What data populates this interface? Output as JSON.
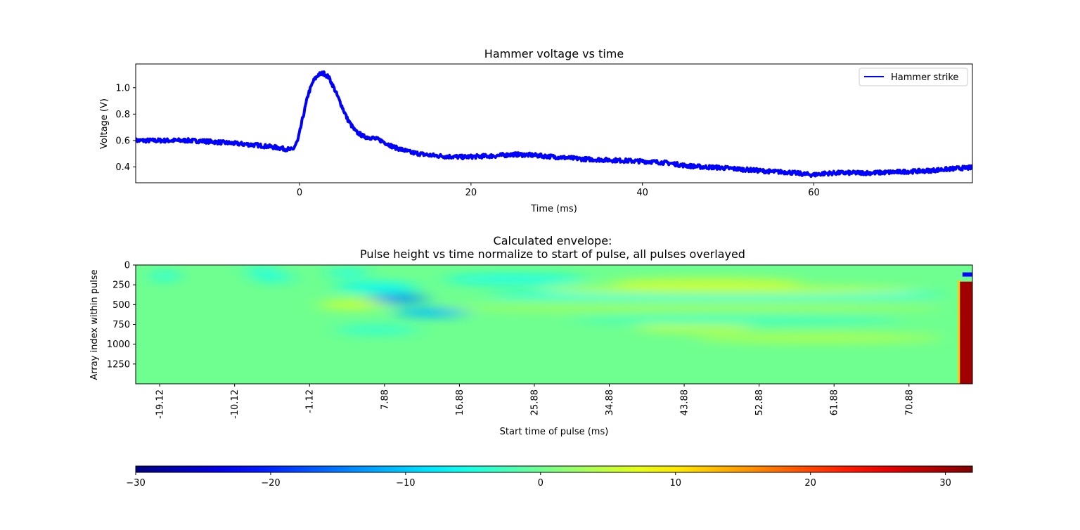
{
  "chart_data": [
    {
      "type": "line",
      "title": "Hammer voltage vs time",
      "xlabel": "Time (ms)",
      "ylabel": "Voltage (V)",
      "xlim": [
        -19.12,
        78.5
      ],
      "ylim": [
        0.28,
        1.18
      ],
      "xticks": [
        0,
        20,
        40,
        60
      ],
      "xtick_labels": [
        "0",
        "20",
        "40",
        "60"
      ],
      "yticks": [
        0.4,
        0.6,
        0.8,
        1.0
      ],
      "ytick_labels": [
        "0.4",
        "0.6",
        "0.8",
        "1.0"
      ],
      "grid": false,
      "legend": "top-right",
      "series": [
        {
          "name": "Hammer strike",
          "color": "#0000ff",
          "x": [
            -19.12,
            -17,
            -15,
            -13,
            -11,
            -9,
            -7,
            -5,
            -3,
            -1.5,
            -0.8,
            -0.2,
            0.4,
            1.0,
            1.6,
            2.2,
            2.8,
            3.4,
            4.0,
            4.8,
            5.6,
            6.5,
            7.5,
            8.5,
            9.5,
            11,
            13,
            15,
            17,
            19,
            21,
            23,
            25,
            27,
            29,
            31,
            33,
            35,
            37,
            39,
            41,
            43,
            45,
            47,
            49,
            51,
            53,
            55,
            57,
            59,
            60,
            61,
            63,
            65,
            67,
            69,
            71,
            73,
            75,
            77,
            78.5
          ],
          "y": [
            0.6,
            0.6,
            0.6,
            0.6,
            0.595,
            0.585,
            0.575,
            0.565,
            0.55,
            0.535,
            0.53,
            0.6,
            0.78,
            0.95,
            1.05,
            1.1,
            1.11,
            1.08,
            1.0,
            0.88,
            0.76,
            0.67,
            0.63,
            0.62,
            0.6,
            0.55,
            0.51,
            0.49,
            0.48,
            0.475,
            0.48,
            0.485,
            0.495,
            0.49,
            0.48,
            0.47,
            0.46,
            0.455,
            0.45,
            0.445,
            0.44,
            0.43,
            0.41,
            0.4,
            0.395,
            0.385,
            0.375,
            0.365,
            0.36,
            0.345,
            0.34,
            0.35,
            0.355,
            0.355,
            0.355,
            0.36,
            0.365,
            0.37,
            0.38,
            0.39,
            0.395
          ]
        }
      ]
    },
    {
      "type": "heatmap",
      "title": "Calculated envelope:\nPulse height vs time normalize to start of pulse, all pulses overlayed",
      "xlabel": "Start time of pulse (ms)",
      "ylabel": "Array index within pulse",
      "xlim": [
        -22,
        78.5
      ],
      "ylim": [
        1500,
        0
      ],
      "xticks": [
        -19.12,
        -10.12,
        -1.12,
        7.88,
        16.88,
        25.88,
        34.88,
        43.88,
        52.88,
        61.88,
        70.88
      ],
      "xtick_labels": [
        "-19.12",
        "-10.12",
        "-1.12",
        "7.88",
        "16.88",
        "25.88",
        "34.88",
        "43.88",
        "52.88",
        "61.88",
        "70.88"
      ],
      "yticks": [
        0,
        250,
        500,
        750,
        1000,
        1250
      ],
      "ytick_labels": [
        "0",
        "250",
        "500",
        "750",
        "1000",
        "1250"
      ],
      "colormap": "jet",
      "background_value": 0,
      "bands": [
        {
          "x": [
            -20,
            -17
          ],
          "y": 140,
          "value": -6
        },
        {
          "x": [
            -9,
            -5
          ],
          "y": 60,
          "value": -4
        },
        {
          "x": [
            -8,
            -3
          ],
          "y": 160,
          "value": -5
        },
        {
          "x": [
            1,
            6
          ],
          "y": 100,
          "value": -5
        },
        {
          "x": [
            2,
            12
          ],
          "y": 280,
          "value": -7
        },
        {
          "x": [
            6,
            13
          ],
          "y": 420,
          "value": -14
        },
        {
          "x": [
            9,
            18
          ],
          "y": 600,
          "value": -11
        },
        {
          "x": [
            0,
            8
          ],
          "y": 500,
          "value": 6
        },
        {
          "x": [
            15,
            32
          ],
          "y": 180,
          "value": -6
        },
        {
          "x": [
            20,
            75
          ],
          "y": 380,
          "value": -6
        },
        {
          "x": [
            35,
            58
          ],
          "y": 230,
          "value": 6
        },
        {
          "x": [
            27,
            72
          ],
          "y": 320,
          "value": 5
        },
        {
          "x": [
            38,
            52
          ],
          "y": 790,
          "value": 5
        },
        {
          "x": [
            45,
            75
          ],
          "y": 920,
          "value": 4
        },
        {
          "x": [
            2,
            12
          ],
          "y": 820,
          "value": -4
        },
        {
          "x": [
            30,
            70
          ],
          "y": 690,
          "value": -3
        },
        {
          "x": [
            15,
            75
          ],
          "y": 540,
          "value": 3
        }
      ],
      "saturated_region": {
        "x": [
          77,
          78.5
        ],
        "y": [
          210,
          1500
        ],
        "value": 30
      },
      "negative_spot": {
        "x": [
          77.3,
          78.5
        ],
        "y": 120,
        "value": -22
      }
    },
    {
      "type": "colorbar",
      "colormap": "jet",
      "range": [
        -30,
        32
      ],
      "ticks": [
        -30,
        -20,
        -10,
        0,
        10,
        20,
        30
      ],
      "tick_labels": [
        "−30",
        "−20",
        "−10",
        "0",
        "10",
        "20",
        "30"
      ]
    }
  ]
}
